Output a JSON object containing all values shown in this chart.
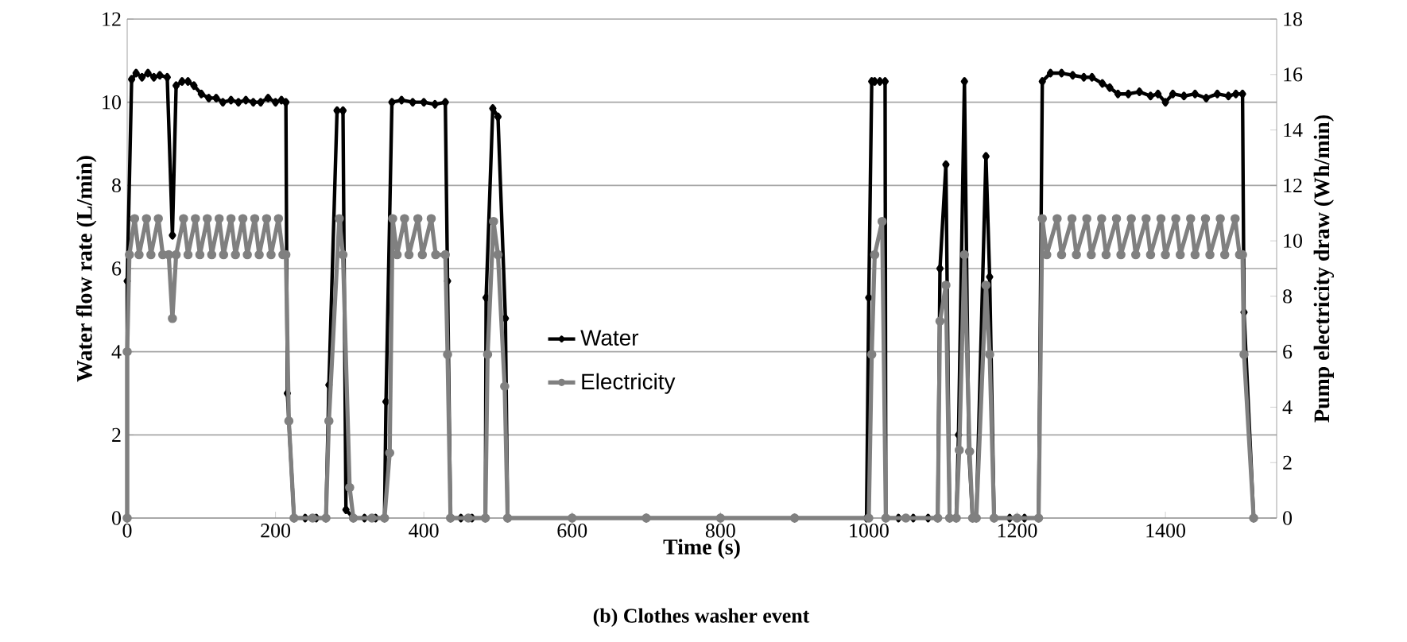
{
  "chart_data": {
    "type": "line",
    "title": "(b) Clothes washer event",
    "xlabel": "Time (s)",
    "ylabel": "Water flow rate (L/min)",
    "y2label": "Pump electricity draw (Wh/min)",
    "xlim": [
      0,
      1550
    ],
    "xticks": [
      0,
      200,
      400,
      600,
      800,
      1000,
      1200,
      1400
    ],
    "ylim": [
      0,
      12
    ],
    "yticks": [
      0,
      2,
      4,
      6,
      8,
      10,
      12
    ],
    "y2lim": [
      0,
      18
    ],
    "y2ticks": [
      0,
      2,
      4,
      6,
      8,
      10,
      12,
      14,
      16,
      18
    ],
    "grid": "y",
    "legend": "center",
    "line_style": "solid",
    "series": [
      {
        "name": "Water",
        "color": "#000000",
        "marker": "diamond",
        "x": [
          0,
          0,
          6,
          12,
          20,
          28,
          36,
          44,
          54,
          61,
          66,
          74,
          82,
          90,
          100,
          110,
          120,
          129,
          140,
          150,
          160,
          170,
          180,
          190,
          200,
          208,
          214,
          216,
          225,
          240,
          255,
          268,
          272,
          283,
          291,
          295,
          305,
          320,
          335,
          347,
          349,
          357,
          370,
          385,
          400,
          415,
          429,
          432,
          436,
          450,
          465,
          483,
          484,
          493,
          500,
          510,
          513,
          600,
          700,
          800,
          900,
          997,
          1000,
          1004,
          1008,
          1015,
          1022,
          1023,
          1040,
          1060,
          1080,
          1093,
          1096,
          1104,
          1109,
          1118,
          1121,
          1129,
          1135,
          1140,
          1145,
          1158,
          1163,
          1169,
          1190,
          1210,
          1229,
          1234,
          1245,
          1260,
          1275,
          1290,
          1301,
          1315,
          1325,
          1336,
          1350,
          1365,
          1380,
          1390,
          1400,
          1410,
          1425,
          1440,
          1455,
          1470,
          1485,
          1495,
          1504,
          1506,
          1519
        ],
        "values": [
          0,
          5.7,
          10.55,
          10.7,
          10.6,
          10.7,
          10.6,
          10.65,
          10.6,
          6.8,
          10.4,
          10.5,
          10.5,
          10.4,
          10.2,
          10.1,
          10.1,
          10.0,
          10.05,
          10.0,
          10.05,
          10.0,
          10.0,
          10.1,
          10.0,
          10.05,
          10.0,
          3.0,
          0,
          0,
          0,
          0,
          3.2,
          9.8,
          9.8,
          0.2,
          0,
          0,
          0,
          0,
          2.8,
          10.0,
          10.05,
          10.0,
          10.0,
          9.95,
          10.0,
          5.7,
          0,
          0,
          0,
          0,
          5.3,
          9.85,
          9.65,
          4.8,
          0,
          0,
          0,
          0,
          0,
          0,
          5.3,
          10.5,
          10.5,
          10.5,
          10.5,
          0,
          0,
          0,
          0,
          0,
          6.0,
          8.5,
          0,
          0,
          2.0,
          10.5,
          1.6,
          0,
          0,
          8.7,
          5.8,
          0,
          0,
          0,
          0,
          10.5,
          10.7,
          10.7,
          10.65,
          10.6,
          10.6,
          10.45,
          10.35,
          10.2,
          10.2,
          10.25,
          10.15,
          10.2,
          10.0,
          10.2,
          10.15,
          10.2,
          10.1,
          10.2,
          10.15,
          10.2,
          10.2,
          4.95,
          0
        ]
      },
      {
        "name": "Electricity",
        "color": "#808080",
        "marker": "circle",
        "axis": "y2",
        "x": [
          0,
          0,
          3,
          10,
          16,
          26,
          32,
          42,
          48,
          56,
          61,
          66,
          76,
          82,
          92,
          98,
          108,
          114,
          124,
          130,
          140,
          146,
          156,
          162,
          172,
          178,
          188,
          194,
          204,
          210,
          214,
          218,
          225,
          250,
          268,
          272,
          286,
          291,
          300,
          305,
          330,
          347,
          354,
          358,
          364,
          374,
          380,
          392,
          398,
          410,
          416,
          429,
          432,
          436,
          460,
          483,
          486,
          494,
          500,
          509,
          513,
          600,
          700,
          800,
          900,
          1000,
          1004,
          1008,
          1018,
          1023,
          1050,
          1093,
          1096,
          1104,
          1109,
          1118,
          1122,
          1129,
          1136,
          1140,
          1145,
          1158,
          1163,
          1169,
          1200,
          1229,
          1234,
          1240,
          1254,
          1260,
          1274,
          1280,
          1294,
          1300,
          1314,
          1320,
          1334,
          1340,
          1354,
          1360,
          1374,
          1380,
          1394,
          1400,
          1414,
          1420,
          1434,
          1440,
          1454,
          1460,
          1474,
          1480,
          1494,
          1500,
          1504,
          1506,
          1519
        ],
        "values": [
          0,
          6.0,
          9.5,
          10.8,
          9.5,
          10.8,
          9.5,
          10.8,
          9.5,
          9.5,
          7.2,
          9.5,
          10.8,
          9.5,
          10.8,
          9.5,
          10.8,
          9.5,
          10.8,
          9.5,
          10.8,
          9.5,
          10.8,
          9.5,
          10.8,
          9.5,
          10.8,
          9.5,
          10.8,
          9.5,
          9.5,
          3.5,
          0,
          0,
          0,
          3.5,
          10.8,
          9.5,
          1.1,
          0,
          0,
          0,
          2.35,
          10.8,
          9.5,
          10.8,
          9.5,
          10.8,
          9.5,
          10.8,
          9.5,
          9.5,
          5.9,
          0,
          0,
          0,
          5.9,
          10.7,
          9.5,
          4.75,
          0,
          0,
          0,
          0,
          0,
          0,
          5.9,
          9.5,
          10.7,
          0,
          0,
          0,
          7.1,
          8.4,
          0,
          0,
          2.45,
          9.5,
          2.4,
          0,
          0,
          8.4,
          5.9,
          0,
          0,
          0,
          10.8,
          9.5,
          10.8,
          9.5,
          10.8,
          9.5,
          10.8,
          9.5,
          10.8,
          9.5,
          10.8,
          9.5,
          10.8,
          9.5,
          10.8,
          9.5,
          10.8,
          9.5,
          10.8,
          9.5,
          10.8,
          9.5,
          10.8,
          9.5,
          10.8,
          9.5,
          10.8,
          9.5,
          9.5,
          5.9,
          0
        ]
      }
    ]
  }
}
